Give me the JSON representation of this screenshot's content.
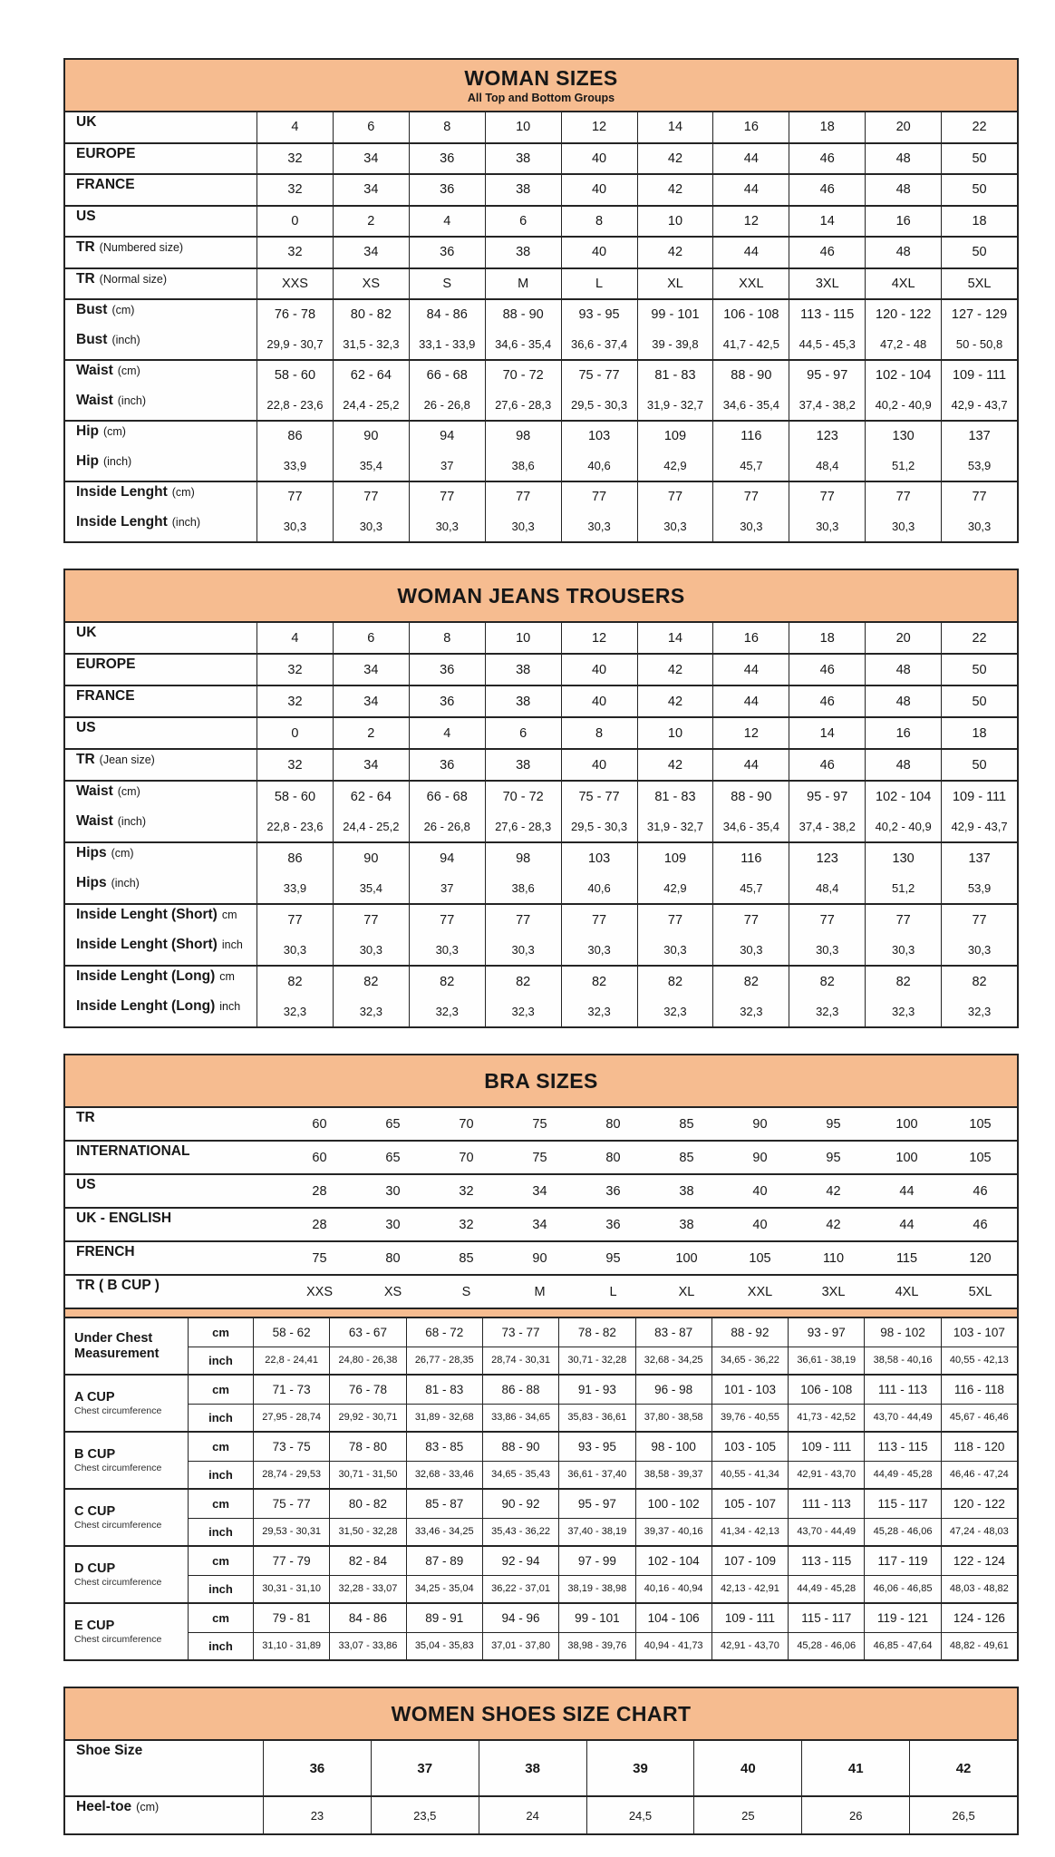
{
  "colors": {
    "accent": "#F6BC90",
    "border": "#242424",
    "text": "#171717",
    "background": "#FFFFFF"
  },
  "tables": {
    "woman_sizes": {
      "title": "WOMAN SIZES",
      "subtitle": "All Top and Bottom Groups",
      "row_groups": [
        {
          "rows": [
            {
              "label": "UK",
              "values": [
                "4",
                "6",
                "8",
                "10",
                "12",
                "14",
                "16",
                "18",
                "20",
                "22"
              ]
            }
          ]
        },
        {
          "rows": [
            {
              "label": "EUROPE",
              "values": [
                "32",
                "34",
                "36",
                "38",
                "40",
                "42",
                "44",
                "46",
                "48",
                "50"
              ]
            }
          ]
        },
        {
          "rows": [
            {
              "label": "FRANCE",
              "values": [
                "32",
                "34",
                "36",
                "38",
                "40",
                "42",
                "44",
                "46",
                "48",
                "50"
              ]
            }
          ]
        },
        {
          "rows": [
            {
              "label": "US",
              "values": [
                "0",
                "2",
                "4",
                "6",
                "8",
                "10",
                "12",
                "14",
                "16",
                "18"
              ]
            }
          ]
        },
        {
          "rows": [
            {
              "label": "TR",
              "note": "(Numbered size)",
              "values": [
                "32",
                "34",
                "36",
                "38",
                "40",
                "42",
                "44",
                "46",
                "48",
                "50"
              ]
            }
          ]
        },
        {
          "rows": [
            {
              "label": "TR",
              "note": "(Normal size)",
              "values": [
                "XXS",
                "XS",
                "S",
                "M",
                "L",
                "XL",
                "XXL",
                "3XL",
                "4XL",
                "5XL"
              ]
            }
          ]
        },
        {
          "rows": [
            {
              "label": "Bust",
              "note": "(cm)",
              "values": [
                "76 - 78",
                "80 - 82",
                "84 - 86",
                "88 - 90",
                "93 - 95",
                "99 - 101",
                "106 - 108",
                "113 - 115",
                "120 - 122",
                "127 - 129"
              ]
            },
            {
              "label": "Bust",
              "note": "(inch)",
              "small": true,
              "values": [
                "29,9 - 30,7",
                "31,5 - 32,3",
                "33,1 - 33,9",
                "34,6 - 35,4",
                "36,6 - 37,4",
                "39 - 39,8",
                "41,7 - 42,5",
                "44,5 - 45,3",
                "47,2 - 48",
                "50 - 50,8"
              ]
            }
          ]
        },
        {
          "rows": [
            {
              "label": "Waist",
              "note": "(cm)",
              "values": [
                "58 - 60",
                "62 - 64",
                "66 - 68",
                "70 - 72",
                "75 - 77",
                "81 - 83",
                "88 - 90",
                "95 - 97",
                "102 - 104",
                "109 - 111"
              ]
            },
            {
              "label": "Waist",
              "note": "(inch)",
              "small": true,
              "values": [
                "22,8 - 23,6",
                "24,4 - 25,2",
                "26 - 26,8",
                "27,6 - 28,3",
                "29,5 - 30,3",
                "31,9 - 32,7",
                "34,6 - 35,4",
                "37,4 - 38,2",
                "40,2 - 40,9",
                "42,9 - 43,7"
              ]
            }
          ]
        },
        {
          "rows": [
            {
              "label": "Hip",
              "note": "(cm)",
              "values": [
                "86",
                "90",
                "94",
                "98",
                "103",
                "109",
                "116",
                "123",
                "130",
                "137"
              ]
            },
            {
              "label": "Hip",
              "note": "(inch)",
              "small": true,
              "values": [
                "33,9",
                "35,4",
                "37",
                "38,6",
                "40,6",
                "42,9",
                "45,7",
                "48,4",
                "51,2",
                "53,9"
              ]
            }
          ]
        },
        {
          "rows": [
            {
              "label": "Inside Lenght",
              "note": "(cm)",
              "values": [
                "77",
                "77",
                "77",
                "77",
                "77",
                "77",
                "77",
                "77",
                "77",
                "77"
              ]
            },
            {
              "label": "Inside Lenght",
              "note": "(inch)",
              "small": true,
              "values": [
                "30,3",
                "30,3",
                "30,3",
                "30,3",
                "30,3",
                "30,3",
                "30,3",
                "30,3",
                "30,3",
                "30,3"
              ]
            }
          ]
        }
      ]
    },
    "woman_jeans": {
      "title": "WOMAN JEANS TROUSERS",
      "row_groups": [
        {
          "rows": [
            {
              "label": "UK",
              "values": [
                "4",
                "6",
                "8",
                "10",
                "12",
                "14",
                "16",
                "18",
                "20",
                "22"
              ]
            }
          ]
        },
        {
          "rows": [
            {
              "label": "EUROPE",
              "values": [
                "32",
                "34",
                "36",
                "38",
                "40",
                "42",
                "44",
                "46",
                "48",
                "50"
              ]
            }
          ]
        },
        {
          "rows": [
            {
              "label": "FRANCE",
              "values": [
                "32",
                "34",
                "36",
                "38",
                "40",
                "42",
                "44",
                "46",
                "48",
                "50"
              ]
            }
          ]
        },
        {
          "rows": [
            {
              "label": "US",
              "values": [
                "0",
                "2",
                "4",
                "6",
                "8",
                "10",
                "12",
                "14",
                "16",
                "18"
              ]
            }
          ]
        },
        {
          "rows": [
            {
              "label": "TR",
              "note": "(Jean size)",
              "values": [
                "32",
                "34",
                "36",
                "38",
                "40",
                "42",
                "44",
                "46",
                "48",
                "50"
              ]
            }
          ]
        },
        {
          "rows": [
            {
              "label": "Waist",
              "note": "(cm)",
              "values": [
                "58 - 60",
                "62 - 64",
                "66 - 68",
                "70 - 72",
                "75 - 77",
                "81 - 83",
                "88 - 90",
                "95 - 97",
                "102 - 104",
                "109 - 111"
              ]
            },
            {
              "label": "Waist",
              "note": "(inch)",
              "small": true,
              "values": [
                "22,8 - 23,6",
                "24,4 - 25,2",
                "26 - 26,8",
                "27,6 - 28,3",
                "29,5 - 30,3",
                "31,9 - 32,7",
                "34,6 - 35,4",
                "37,4 - 38,2",
                "40,2 - 40,9",
                "42,9 - 43,7"
              ]
            }
          ]
        },
        {
          "rows": [
            {
              "label": "Hips",
              "note": "(cm)",
              "values": [
                "86",
                "90",
                "94",
                "98",
                "103",
                "109",
                "116",
                "123",
                "130",
                "137"
              ]
            },
            {
              "label": "Hips",
              "note": "(inch)",
              "small": true,
              "values": [
                "33,9",
                "35,4",
                "37",
                "38,6",
                "40,6",
                "42,9",
                "45,7",
                "48,4",
                "51,2",
                "53,9"
              ]
            }
          ]
        },
        {
          "rows": [
            {
              "label": "Inside Lenght (Short)",
              "note": "cm",
              "values": [
                "77",
                "77",
                "77",
                "77",
                "77",
                "77",
                "77",
                "77",
                "77",
                "77"
              ]
            },
            {
              "label": "Inside Lenght (Short)",
              "note": "inch",
              "small": true,
              "values": [
                "30,3",
                "30,3",
                "30,3",
                "30,3",
                "30,3",
                "30,3",
                "30,3",
                "30,3",
                "30,3",
                "30,3"
              ]
            }
          ]
        },
        {
          "rows": [
            {
              "label": "Inside Lenght (Long)",
              "note": "cm",
              "values": [
                "82",
                "82",
                "82",
                "82",
                "82",
                "82",
                "82",
                "82",
                "82",
                "82"
              ]
            },
            {
              "label": "Inside Lenght (Long)",
              "note": "inch",
              "small": true,
              "values": [
                "32,3",
                "32,3",
                "32,3",
                "32,3",
                "32,3",
                "32,3",
                "32,3",
                "32,3",
                "32,3",
                "32,3"
              ]
            }
          ]
        }
      ]
    },
    "bra_sizes": {
      "title": "BRA SIZES",
      "no_vlines": true,
      "row_groups": [
        {
          "rows": [
            {
              "label": "TR",
              "values": [
                "60",
                "65",
                "70",
                "75",
                "80",
                "85",
                "90",
                "95",
                "100",
                "105"
              ]
            }
          ]
        },
        {
          "rows": [
            {
              "label": "INTERNATIONAL",
              "values": [
                "60",
                "65",
                "70",
                "75",
                "80",
                "85",
                "90",
                "95",
                "100",
                "105"
              ]
            }
          ]
        },
        {
          "rows": [
            {
              "label": "US",
              "values": [
                "28",
                "30",
                "32",
                "34",
                "36",
                "38",
                "40",
                "42",
                "44",
                "46"
              ]
            }
          ]
        },
        {
          "rows": [
            {
              "label": "UK - ENGLISH",
              "values": [
                "28",
                "30",
                "32",
                "34",
                "36",
                "38",
                "40",
                "42",
                "44",
                "46"
              ]
            }
          ]
        },
        {
          "rows": [
            {
              "label": "FRENCH",
              "values": [
                "75",
                "80",
                "85",
                "90",
                "95",
                "100",
                "105",
                "110",
                "115",
                "120"
              ]
            }
          ]
        },
        {
          "rows": [
            {
              "label": "TR ( B CUP )",
              "values": [
                "XXS",
                "XS",
                "S",
                "M",
                "L",
                "XL",
                "XXL",
                "3XL",
                "4XL",
                "5XL"
              ]
            }
          ]
        }
      ],
      "unit_cm": "cm",
      "unit_inch": "inch",
      "cup_groups": [
        {
          "label": "Under Chest Measurement",
          "sub": "",
          "cm": [
            "58 - 62",
            "63 - 67",
            "68 - 72",
            "73 - 77",
            "78 - 82",
            "83 - 87",
            "88 - 92",
            "93 - 97",
            "98 - 102",
            "103 - 107"
          ],
          "inch": [
            "22,8 - 24,41",
            "24,80 - 26,38",
            "26,77 - 28,35",
            "28,74 - 30,31",
            "30,71 - 32,28",
            "32,68 - 34,25",
            "34,65 - 36,22",
            "36,61 - 38,19",
            "38,58 - 40,16",
            "40,55 - 42,13"
          ]
        },
        {
          "label": "A CUP",
          "sub": "Chest circumference",
          "cm": [
            "71 - 73",
            "76 - 78",
            "81 - 83",
            "86 - 88",
            "91 - 93",
            "96 - 98",
            "101 - 103",
            "106 - 108",
            "111 - 113",
            "116 - 118"
          ],
          "inch": [
            "27,95 - 28,74",
            "29,92 - 30,71",
            "31,89 - 32,68",
            "33,86 - 34,65",
            "35,83 - 36,61",
            "37,80 - 38,58",
            "39,76 - 40,55",
            "41,73 - 42,52",
            "43,70 - 44,49",
            "45,67 - 46,46"
          ]
        },
        {
          "label": "B CUP",
          "sub": "Chest circumference",
          "cm": [
            "73 - 75",
            "78 - 80",
            "83 - 85",
            "88 - 90",
            "93 - 95",
            "98 - 100",
            "103 - 105",
            "109 - 111",
            "113 - 115",
            "118 - 120"
          ],
          "inch": [
            "28,74 - 29,53",
            "30,71 - 31,50",
            "32,68 - 33,46",
            "34,65 - 35,43",
            "36,61 - 37,40",
            "38,58 - 39,37",
            "40,55 - 41,34",
            "42,91 - 43,70",
            "44,49 - 45,28",
            "46,46 - 47,24"
          ]
        },
        {
          "label": "C CUP",
          "sub": "Chest circumference",
          "cm": [
            "75 - 77",
            "80 - 82",
            "85 - 87",
            "90 - 92",
            "95 - 97",
            "100 - 102",
            "105 - 107",
            "111 - 113",
            "115 - 117",
            "120 - 122"
          ],
          "inch": [
            "29,53 - 30,31",
            "31,50 - 32,28",
            "33,46 - 34,25",
            "35,43 - 36,22",
            "37,40 - 38,19",
            "39,37 - 40,16",
            "41,34 - 42,13",
            "43,70 - 44,49",
            "45,28 - 46,06",
            "47,24 - 48,03"
          ]
        },
        {
          "label": "D CUP",
          "sub": "Chest circumference",
          "cm": [
            "77 - 79",
            "82 - 84",
            "87 - 89",
            "92 - 94",
            "97 - 99",
            "102 - 104",
            "107 - 109",
            "113 - 115",
            "117 - 119",
            "122 - 124"
          ],
          "inch": [
            "30,31 - 31,10",
            "32,28 - 33,07",
            "34,25 - 35,04",
            "36,22 - 37,01",
            "38,19 - 38,98",
            "40,16 - 40,94",
            "42,13 - 42,91",
            "44,49 - 45,28",
            "46,06 - 46,85",
            "48,03 - 48,82"
          ]
        },
        {
          "label": "E CUP",
          "sub": "Chest circumference",
          "cm": [
            "79 - 81",
            "84 - 86",
            "89 - 91",
            "94 - 96",
            "99 - 101",
            "104 - 106",
            "109 - 111",
            "115 - 117",
            "119 - 121",
            "124 - 126"
          ],
          "inch": [
            "31,10 - 31,89",
            "33,07 - 33,86",
            "35,04 - 35,83",
            "37,01 - 37,80",
            "38,98 - 39,76",
            "40,94 - 41,73",
            "42,91 - 43,70",
            "45,28 - 46,06",
            "46,85 - 47,64",
            "48,82 - 49,61"
          ]
        }
      ]
    },
    "shoes": {
      "title": "WOMEN SHOES SIZE CHART",
      "row_groups": [
        {
          "rows": [
            {
              "label": "Shoe Size",
              "bold": true,
              "values": [
                "36",
                "37",
                "38",
                "39",
                "40",
                "41",
                "42"
              ]
            }
          ]
        },
        {
          "rows": [
            {
              "label": "Heel-toe",
              "note": "(cm)",
              "small": true,
              "values": [
                "23",
                "23,5",
                "24",
                "24,5",
                "25",
                "26",
                "26,5"
              ]
            }
          ]
        }
      ]
    }
  }
}
